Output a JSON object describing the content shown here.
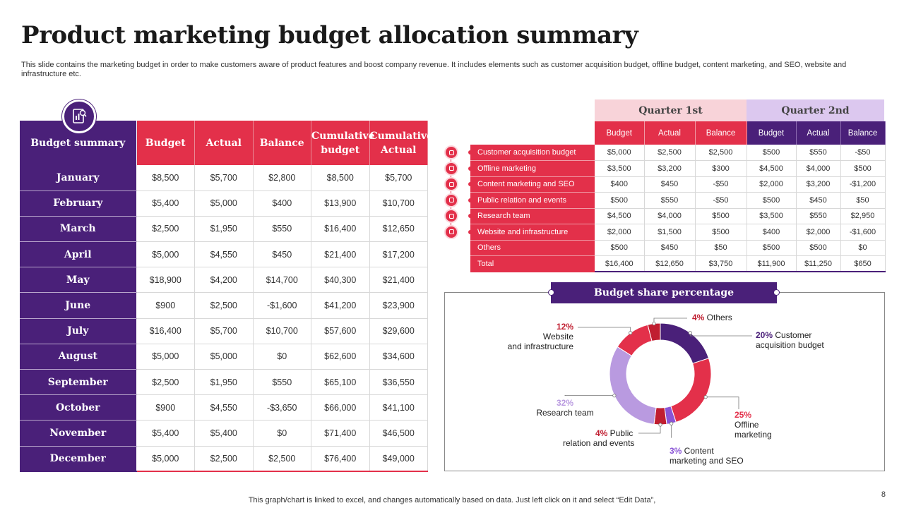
{
  "title": "Product marketing budget allocation summary",
  "subtitle": "This slide contains the marketing budget in order to make customers aware of product features and boost company revenue. It includes elements such as customer acquisition budget, offline budget, content marketing, and SEO, website and infrastructure etc.",
  "left_table": {
    "headers": [
      "Budget summary",
      "Budget",
      "Actual",
      "Balance",
      "Cumulative budget",
      "Cumulative Actual"
    ],
    "rows": [
      [
        "January",
        "$8,500",
        "$5,700",
        "$2,800",
        "$8,500",
        "$5,700"
      ],
      [
        "February",
        "$5,400",
        "$5,000",
        "$400",
        "$13,900",
        "$10,700"
      ],
      [
        "March",
        "$2,500",
        "$1,950",
        "$550",
        "$16,400",
        "$12,650"
      ],
      [
        "April",
        "$5,000",
        "$4,550",
        "$450",
        "$21,400",
        "$17,200"
      ],
      [
        "May",
        "$18,900",
        "$4,200",
        "$14,700",
        "$40,300",
        "$21,400"
      ],
      [
        "June",
        "$900",
        "$2,500",
        "-$1,600",
        "$41,200",
        "$23,900"
      ],
      [
        "July",
        "$16,400",
        "$5,700",
        "$10,700",
        "$57,600",
        "$29,600"
      ],
      [
        "August",
        "$5,000",
        "$5,000",
        "$0",
        "$62,600",
        "$34,600"
      ],
      [
        "September",
        "$2,500",
        "$1,950",
        "$550",
        "$65,100",
        "$36,550"
      ],
      [
        "October",
        "$900",
        "$4,550",
        "-$3,650",
        "$66,000",
        "$41,100"
      ],
      [
        "November",
        "$5,400",
        "$5,400",
        "$0",
        "$71,400",
        "$46,500"
      ],
      [
        "December",
        "$5,000",
        "$2,500",
        "$2,500",
        "$76,400",
        "$49,000"
      ]
    ]
  },
  "right_table": {
    "quarters": [
      "Quarter 1st",
      "Quarter 2nd"
    ],
    "sub_headers": [
      "Budget",
      "Actual",
      "Balance",
      "Budget",
      "Actual",
      "Balance"
    ],
    "rows": [
      [
        "Customer acquisition budget",
        "$5,000",
        "$2,500",
        "$2,500",
        "$500",
        "$550",
        "-$50"
      ],
      [
        "Offline marketing",
        "$3,500",
        "$3,200",
        "$300",
        "$4,500",
        "$4,000",
        "$500"
      ],
      [
        "Content marketing and SEO",
        "$400",
        "$450",
        "-$50",
        "$2,000",
        "$3,200",
        "-$1,200"
      ],
      [
        "Public relation and events",
        "$500",
        "$550",
        "-$50",
        "$500",
        "$450",
        "$50"
      ],
      [
        "Research team",
        "$4,500",
        "$4,000",
        "$500",
        "$3,500",
        "$550",
        "$2,950"
      ],
      [
        "Website and infrastructure",
        "$2,000",
        "$1,500",
        "$500",
        "$400",
        "$2,000",
        "-$1,600"
      ],
      [
        "Others",
        "$500",
        "$450",
        "$50",
        "$500",
        "$500",
        "$0"
      ],
      [
        "Total",
        "$16,400",
        "$12,650",
        "$3,750",
        "$11,900",
        "$11,250",
        "$650"
      ]
    ],
    "row_icons": [
      "user-icon",
      "store-icon",
      "search-icon",
      "megaphone-icon",
      "people-icon",
      "globe-icon"
    ]
  },
  "chart_data": {
    "type": "pie",
    "donut": true,
    "title": "Budget share percentage",
    "slices": [
      {
        "label": "Customer acquisition budget",
        "value": 20,
        "pct_label": "20%",
        "color": "#4a2079"
      },
      {
        "label": "Offline marketing",
        "value": 25,
        "pct_label": "25%",
        "color": "#e3304a"
      },
      {
        "label": "Content marketing and SEO",
        "value": 3,
        "pct_label": "3%",
        "color": "#8a55d6"
      },
      {
        "label": "Public relation and events",
        "value": 4,
        "pct_label": "4%",
        "color": "#c01e30"
      },
      {
        "label": "Research team",
        "value": 32,
        "pct_label": "32%",
        "color": "#b99ae0"
      },
      {
        "label": "Website and infrastructure",
        "value": 12,
        "pct_label": "12%",
        "color": "#e3304a"
      },
      {
        "label": "Others",
        "value": 4,
        "pct_label": "4%",
        "color": "#c01e30"
      }
    ]
  },
  "colors": {
    "purple": "#4a2079",
    "red": "#e3304a",
    "light_pink": "#f8d3d9",
    "light_purple": "#dcc8ef"
  },
  "footer": "This graph/chart is linked to excel,  and changes automatically based on data. Just left click on it and select “Edit Data”,",
  "page_number": "8"
}
